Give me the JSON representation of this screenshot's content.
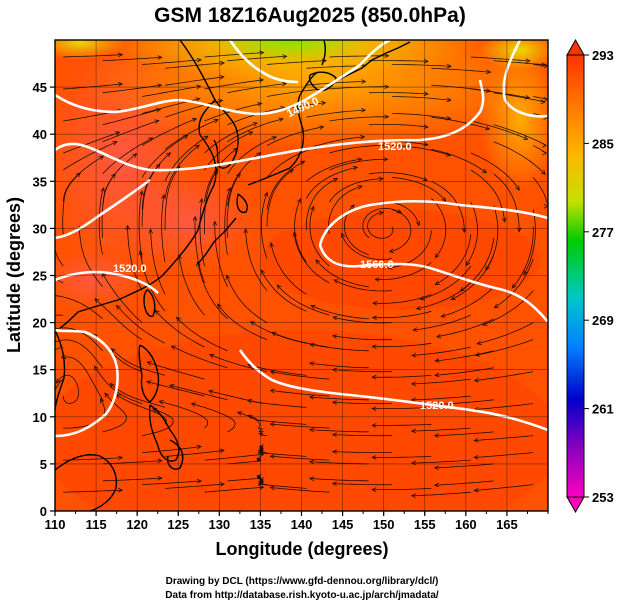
{
  "title": "GSM 18Z16Aug2025 (850.0hPa)",
  "xlabel": "Longitude (degrees)",
  "ylabel": "Latitude  (degrees)",
  "credits": [
    "Drawing by DCL (https://www.gfd-dennou.org/library/dcl/)",
    "Data from http://database.rish.kyoto-u.ac.jp/arch/jmadata/"
  ],
  "chart_data": {
    "type": "heatmap",
    "variable": "temperature (K) with streamlines and geopotential height contours",
    "xlim": [
      110,
      170
    ],
    "ylim": [
      0,
      50
    ],
    "x_ticks": [
      "110",
      "115",
      "120",
      "125",
      "130",
      "135",
      "140",
      "145",
      "150",
      "155",
      "160",
      "165"
    ],
    "y_ticks": [
      "0",
      "5",
      "10",
      "15",
      "20",
      "25",
      "30",
      "35",
      "40",
      "45"
    ],
    "colorbar": {
      "min": 253,
      "max": 293,
      "tick_labels": [
        "293",
        "285",
        "277",
        "269",
        "261",
        "253"
      ],
      "colors": [
        "#ff3300",
        "#ff7a00",
        "#ffb400",
        "#c8e000",
        "#00cc00",
        "#00c8c8",
        "#0080ff",
        "#0000cc",
        "#8000c0",
        "#ff00c0"
      ]
    },
    "contour_labels": [
      {
        "text": "1520.0",
        "lon": 125,
        "lat": 26
      },
      {
        "text": "1520.0",
        "lon": 153,
        "lat": 40.5
      },
      {
        "text": "1490.0",
        "lon": 139,
        "lat": 45.5
      },
      {
        "text": "1560.0",
        "lon": 154,
        "lat": 28.5
      },
      {
        "text": "1520.0",
        "lon": 158,
        "lat": 10.5
      }
    ]
  },
  "colors": {
    "background": "#ffffff",
    "contour": "#ffffff",
    "coastline": "#000000"
  }
}
